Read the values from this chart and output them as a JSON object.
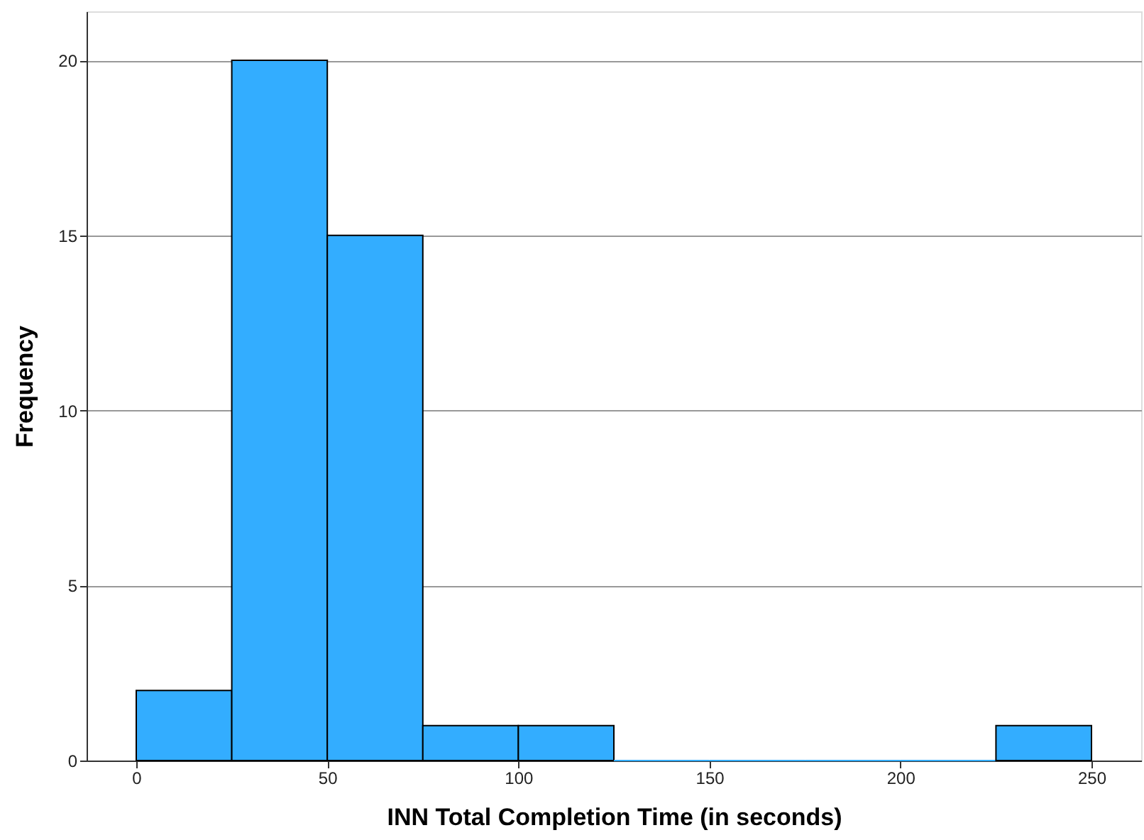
{
  "chart_data": {
    "type": "histogram",
    "xlabel": "INN Total Completion Time (in seconds)",
    "ylabel": "Frequency",
    "bins": [
      0,
      25,
      50,
      75,
      100,
      125,
      150,
      175,
      200,
      225,
      250
    ],
    "values": [
      2,
      20,
      15,
      1,
      1,
      0,
      0,
      0,
      0,
      1
    ],
    "color": "#33adff",
    "xlim": [
      -13,
      263
    ],
    "xticks": [
      0,
      50,
      100,
      150,
      200,
      250
    ],
    "ylim": [
      0,
      21.4
    ],
    "yticks": [
      0,
      5,
      10,
      15,
      20
    ],
    "grid": "y"
  }
}
